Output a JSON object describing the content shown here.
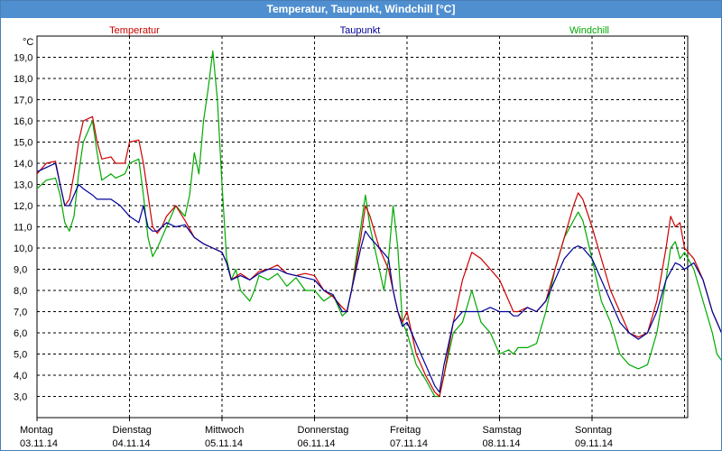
{
  "window": {
    "title": "Temperatur, Taupunkt, Windchill [°C]"
  },
  "chart_data": {
    "type": "line",
    "title": "Temperatur, Taupunkt, Windchill [°C]",
    "ylabel": "°C",
    "ylim": [
      2.0,
      20.0
    ],
    "yticks": [
      "3,0",
      "4,0",
      "5,0",
      "6,0",
      "7,0",
      "8,0",
      "9,0",
      "10,0",
      "11,0",
      "12,0",
      "13,0",
      "14,0",
      "15,0",
      "16,0",
      "17,0",
      "18,0",
      "19,0"
    ],
    "x_start": "03.11.14 00:00",
    "x_end": "10.11.14 00:00",
    "day_labels": [
      {
        "weekday": "Montag",
        "date": "03.11.14"
      },
      {
        "weekday": "Dienstag",
        "date": "04.11.14"
      },
      {
        "weekday": "Mittwoch",
        "date": "05.11.14"
      },
      {
        "weekday": "Donnerstag",
        "date": "06.11.14"
      },
      {
        "weekday": "Freitag",
        "date": "07.11.14"
      },
      {
        "weekday": "Samstag",
        "date": "08.11.14"
      },
      {
        "weekday": "Sonntag",
        "date": "09.11.14"
      }
    ],
    "grid": true,
    "legend_position": "top",
    "series": [
      {
        "name": "Temperatur",
        "color": "#cc0000",
        "points": [
          [
            0.0,
            13.5
          ],
          [
            0.1,
            14.0
          ],
          [
            0.2,
            14.1
          ],
          [
            0.25,
            13.0
          ],
          [
            0.3,
            12.0
          ],
          [
            0.35,
            12.3
          ],
          [
            0.4,
            13.5
          ],
          [
            0.45,
            15.0
          ],
          [
            0.5,
            16.0
          ],
          [
            0.6,
            16.2
          ],
          [
            0.65,
            15.0
          ],
          [
            0.7,
            14.2
          ],
          [
            0.8,
            14.3
          ],
          [
            0.85,
            14.0
          ],
          [
            0.95,
            14.0
          ],
          [
            1.0,
            15.0
          ],
          [
            1.1,
            15.1
          ],
          [
            1.15,
            14.0
          ],
          [
            1.2,
            12.5
          ],
          [
            1.25,
            11.0
          ],
          [
            1.3,
            10.7
          ],
          [
            1.35,
            11.0
          ],
          [
            1.4,
            11.5
          ],
          [
            1.5,
            12.0
          ],
          [
            1.6,
            11.3
          ],
          [
            1.7,
            10.5
          ],
          [
            1.8,
            10.2
          ],
          [
            1.9,
            10.0
          ],
          [
            2.0,
            9.8
          ],
          [
            2.05,
            9.3
          ],
          [
            2.1,
            8.5
          ],
          [
            2.2,
            8.8
          ],
          [
            2.3,
            8.5
          ],
          [
            2.4,
            8.9
          ],
          [
            2.5,
            9.0
          ],
          [
            2.6,
            9.2
          ],
          [
            2.7,
            8.8
          ],
          [
            2.8,
            8.7
          ],
          [
            2.9,
            8.8
          ],
          [
            3.0,
            8.7
          ],
          [
            3.1,
            8.0
          ],
          [
            3.2,
            7.7
          ],
          [
            3.3,
            7.2
          ],
          [
            3.35,
            7.0
          ],
          [
            3.4,
            8.0
          ],
          [
            3.5,
            10.5
          ],
          [
            3.55,
            12.0
          ],
          [
            3.6,
            11.5
          ],
          [
            3.7,
            10.0
          ],
          [
            3.75,
            9.5
          ],
          [
            3.8,
            9.0
          ],
          [
            3.85,
            8.0
          ],
          [
            3.9,
            7.0
          ],
          [
            3.95,
            6.5
          ],
          [
            4.0,
            7.0
          ],
          [
            4.1,
            5.0
          ],
          [
            4.2,
            4.0
          ],
          [
            4.3,
            3.2
          ],
          [
            4.35,
            3.0
          ],
          [
            4.4,
            4.0
          ],
          [
            4.5,
            6.5
          ],
          [
            4.6,
            8.5
          ],
          [
            4.7,
            9.8
          ],
          [
            4.8,
            9.5
          ],
          [
            4.9,
            9.0
          ],
          [
            5.0,
            8.5
          ],
          [
            5.1,
            7.5
          ],
          [
            5.15,
            7.0
          ],
          [
            5.2,
            7.0
          ],
          [
            5.3,
            7.2
          ],
          [
            5.4,
            7.0
          ],
          [
            5.5,
            7.5
          ],
          [
            5.6,
            9.0
          ],
          [
            5.7,
            10.5
          ],
          [
            5.8,
            12.0
          ],
          [
            5.85,
            12.6
          ],
          [
            5.9,
            12.3
          ],
          [
            6.0,
            11.0
          ],
          [
            6.1,
            9.5
          ],
          [
            6.2,
            8.0
          ],
          [
            6.3,
            7.0
          ],
          [
            6.4,
            6.0
          ],
          [
            6.5,
            5.8
          ],
          [
            6.6,
            6.0
          ],
          [
            6.7,
            7.5
          ],
          [
            6.8,
            10.0
          ],
          [
            6.85,
            11.5
          ],
          [
            6.9,
            11.0
          ],
          [
            6.95,
            11.2
          ],
          [
            7.0,
            10.0
          ],
          [
            7.1,
            9.5
          ],
          [
            7.2,
            8.5
          ],
          [
            7.3,
            7.0
          ],
          [
            7.4,
            6.0
          ]
        ]
      },
      {
        "name": "Taupunkt",
        "color": "#000099",
        "points": [
          [
            0.0,
            13.6
          ],
          [
            0.1,
            13.8
          ],
          [
            0.2,
            14.0
          ],
          [
            0.25,
            13.0
          ],
          [
            0.3,
            12.0
          ],
          [
            0.35,
            12.0
          ],
          [
            0.4,
            12.5
          ],
          [
            0.45,
            13.0
          ],
          [
            0.5,
            12.8
          ],
          [
            0.6,
            12.5
          ],
          [
            0.65,
            12.3
          ],
          [
            0.7,
            12.3
          ],
          [
            0.8,
            12.3
          ],
          [
            0.9,
            12.0
          ],
          [
            1.0,
            11.5
          ],
          [
            1.1,
            11.2
          ],
          [
            1.15,
            12.0
          ],
          [
            1.2,
            11.0
          ],
          [
            1.25,
            10.8
          ],
          [
            1.3,
            10.8
          ],
          [
            1.4,
            11.2
          ],
          [
            1.5,
            11.0
          ],
          [
            1.6,
            11.1
          ],
          [
            1.7,
            10.5
          ],
          [
            1.8,
            10.2
          ],
          [
            1.9,
            10.0
          ],
          [
            2.0,
            9.8
          ],
          [
            2.05,
            9.3
          ],
          [
            2.1,
            8.5
          ],
          [
            2.2,
            8.7
          ],
          [
            2.3,
            8.5
          ],
          [
            2.4,
            8.8
          ],
          [
            2.5,
            9.0
          ],
          [
            2.6,
            9.0
          ],
          [
            2.7,
            8.8
          ],
          [
            2.8,
            8.7
          ],
          [
            2.9,
            8.6
          ],
          [
            3.0,
            8.5
          ],
          [
            3.1,
            8.0
          ],
          [
            3.2,
            7.8
          ],
          [
            3.3,
            7.0
          ],
          [
            3.35,
            7.0
          ],
          [
            3.4,
            8.0
          ],
          [
            3.5,
            10.0
          ],
          [
            3.55,
            10.8
          ],
          [
            3.6,
            10.5
          ],
          [
            3.7,
            10.0
          ],
          [
            3.8,
            9.5
          ],
          [
            3.85,
            8.0
          ],
          [
            3.9,
            7.0
          ],
          [
            3.95,
            6.3
          ],
          [
            4.0,
            6.5
          ],
          [
            4.1,
            5.5
          ],
          [
            4.2,
            4.5
          ],
          [
            4.3,
            3.5
          ],
          [
            4.35,
            3.2
          ],
          [
            4.4,
            4.5
          ],
          [
            4.5,
            6.5
          ],
          [
            4.6,
            7.0
          ],
          [
            4.7,
            7.0
          ],
          [
            4.8,
            7.0
          ],
          [
            4.9,
            7.2
          ],
          [
            5.0,
            7.0
          ],
          [
            5.1,
            7.0
          ],
          [
            5.15,
            6.8
          ],
          [
            5.2,
            6.8
          ],
          [
            5.3,
            7.2
          ],
          [
            5.4,
            7.0
          ],
          [
            5.5,
            7.5
          ],
          [
            5.6,
            8.5
          ],
          [
            5.7,
            9.5
          ],
          [
            5.8,
            10.0
          ],
          [
            5.85,
            10.1
          ],
          [
            5.9,
            10.0
          ],
          [
            6.0,
            9.5
          ],
          [
            6.1,
            8.5
          ],
          [
            6.2,
            7.5
          ],
          [
            6.3,
            6.5
          ],
          [
            6.4,
            6.0
          ],
          [
            6.5,
            5.7
          ],
          [
            6.6,
            6.0
          ],
          [
            6.7,
            7.0
          ],
          [
            6.8,
            8.5
          ],
          [
            6.9,
            9.3
          ],
          [
            6.95,
            9.2
          ],
          [
            7.0,
            9.0
          ],
          [
            7.1,
            9.3
          ],
          [
            7.2,
            8.5
          ],
          [
            7.3,
            7.0
          ],
          [
            7.4,
            6.0
          ]
        ]
      },
      {
        "name": "Windchill",
        "color": "#00aa00",
        "points": [
          [
            0.0,
            12.8
          ],
          [
            0.1,
            13.2
          ],
          [
            0.2,
            13.3
          ],
          [
            0.25,
            12.5
          ],
          [
            0.3,
            11.2
          ],
          [
            0.35,
            10.8
          ],
          [
            0.4,
            11.5
          ],
          [
            0.45,
            13.5
          ],
          [
            0.5,
            15.0
          ],
          [
            0.6,
            16.0
          ],
          [
            0.65,
            14.5
          ],
          [
            0.7,
            13.2
          ],
          [
            0.8,
            13.5
          ],
          [
            0.85,
            13.3
          ],
          [
            0.95,
            13.5
          ],
          [
            1.0,
            14.0
          ],
          [
            1.1,
            14.2
          ],
          [
            1.15,
            12.5
          ],
          [
            1.2,
            10.5
          ],
          [
            1.25,
            9.6
          ],
          [
            1.3,
            10.0
          ],
          [
            1.35,
            10.5
          ],
          [
            1.4,
            11.0
          ],
          [
            1.5,
            12.0
          ],
          [
            1.6,
            11.5
          ],
          [
            1.65,
            12.5
          ],
          [
            1.7,
            14.5
          ],
          [
            1.75,
            13.5
          ],
          [
            1.8,
            16.0
          ],
          [
            1.85,
            17.5
          ],
          [
            1.9,
            19.3
          ],
          [
            1.95,
            17.0
          ],
          [
            2.0,
            13.0
          ],
          [
            2.05,
            9.5
          ],
          [
            2.1,
            8.5
          ],
          [
            2.15,
            9.0
          ],
          [
            2.2,
            8.0
          ],
          [
            2.3,
            7.5
          ],
          [
            2.35,
            8.0
          ],
          [
            2.4,
            8.7
          ],
          [
            2.5,
            8.5
          ],
          [
            2.6,
            8.8
          ],
          [
            2.7,
            8.2
          ],
          [
            2.8,
            8.6
          ],
          [
            2.9,
            8.0
          ],
          [
            3.0,
            8.0
          ],
          [
            3.1,
            7.5
          ],
          [
            3.2,
            7.8
          ],
          [
            3.3,
            6.8
          ],
          [
            3.35,
            7.0
          ],
          [
            3.4,
            8.0
          ],
          [
            3.5,
            11.0
          ],
          [
            3.55,
            12.5
          ],
          [
            3.6,
            11.0
          ],
          [
            3.7,
            9.0
          ],
          [
            3.75,
            8.0
          ],
          [
            3.8,
            9.5
          ],
          [
            3.85,
            12.0
          ],
          [
            3.9,
            10.0
          ],
          [
            3.95,
            6.5
          ],
          [
            4.0,
            6.0
          ],
          [
            4.1,
            4.5
          ],
          [
            4.2,
            3.8
          ],
          [
            4.3,
            3.0
          ],
          [
            4.35,
            3.0
          ],
          [
            4.4,
            4.0
          ],
          [
            4.5,
            6.0
          ],
          [
            4.6,
            6.5
          ],
          [
            4.7,
            8.0
          ],
          [
            4.8,
            6.5
          ],
          [
            4.9,
            6.0
          ],
          [
            5.0,
            5.0
          ],
          [
            5.1,
            5.2
          ],
          [
            5.15,
            5.0
          ],
          [
            5.2,
            5.3
          ],
          [
            5.3,
            5.3
          ],
          [
            5.4,
            5.5
          ],
          [
            5.5,
            7.0
          ],
          [
            5.6,
            9.0
          ],
          [
            5.7,
            10.5
          ],
          [
            5.8,
            11.3
          ],
          [
            5.85,
            11.7
          ],
          [
            5.9,
            11.3
          ],
          [
            6.0,
            9.5
          ],
          [
            6.1,
            7.5
          ],
          [
            6.2,
            6.5
          ],
          [
            6.3,
            5.0
          ],
          [
            6.4,
            4.5
          ],
          [
            6.5,
            4.3
          ],
          [
            6.6,
            4.5
          ],
          [
            6.7,
            6.0
          ],
          [
            6.8,
            8.5
          ],
          [
            6.85,
            10.0
          ],
          [
            6.9,
            10.3
          ],
          [
            6.95,
            9.5
          ],
          [
            7.0,
            9.8
          ],
          [
            7.1,
            9.0
          ],
          [
            7.2,
            7.5
          ],
          [
            7.3,
            6.0
          ],
          [
            7.35,
            5.0
          ],
          [
            7.4,
            4.7
          ]
        ]
      }
    ]
  }
}
